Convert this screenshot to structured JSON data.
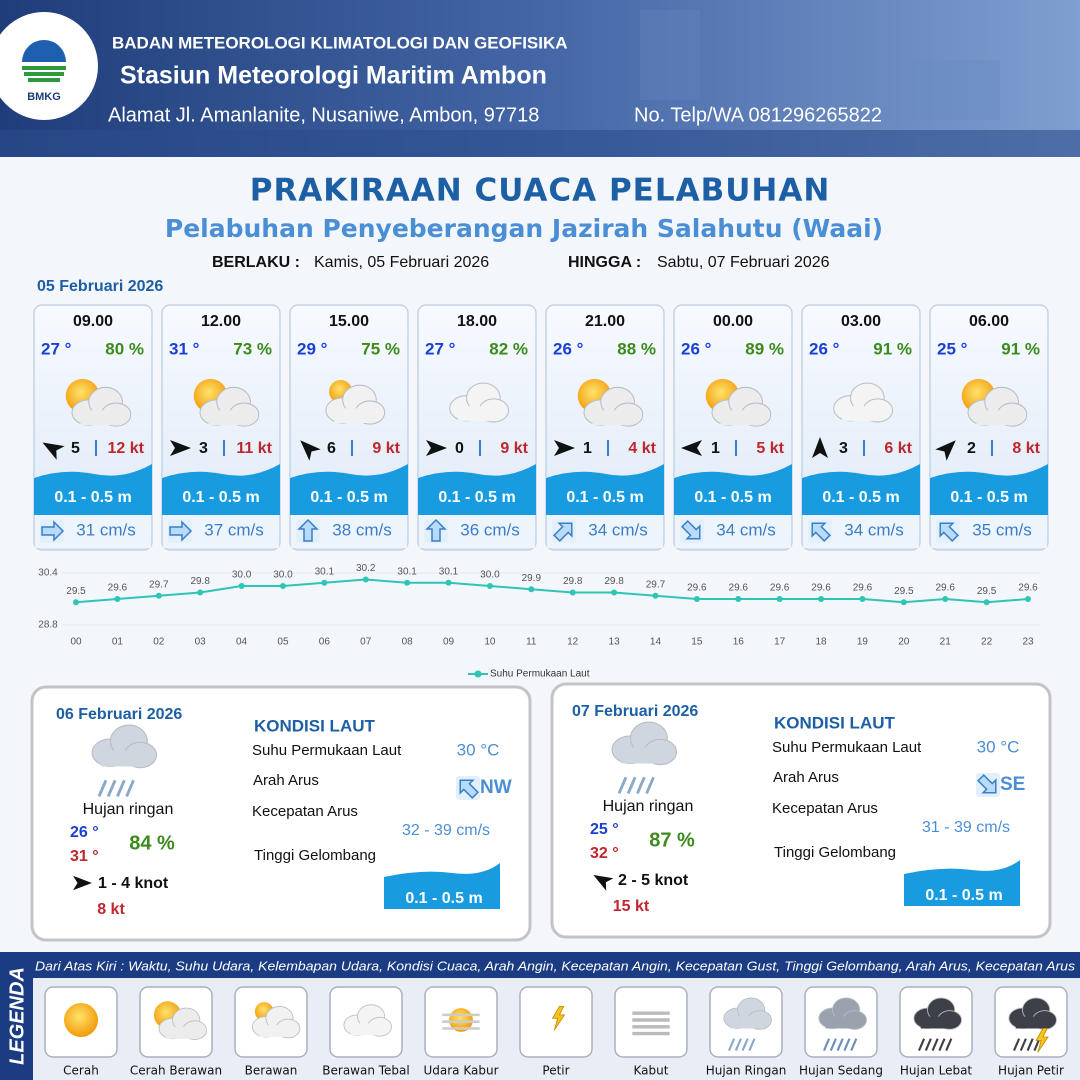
{
  "header": {
    "logo": "BMKG",
    "agency": "BADAN METEOROLOGI KLIMATOLOGI DAN GEOFISIKA",
    "station": "Stasiun Meteorologi Maritim Ambon",
    "address": "Alamat Jl. Amanlanite, Nusaniwe, Ambon, 97718",
    "phone": "No. Telp/WA  081296265822"
  },
  "title": "PRAKIRAAN CUACA PELABUHAN",
  "subtitle": "Pelabuhan Penyeberangan Jazirah Salahutu (Waai)",
  "validity": {
    "from_label": "BERLAKU :",
    "from": "Kamis, 05 Februari 2026",
    "to_label": "HINGGA :",
    "to": "Sabtu, 07 Februari 2026"
  },
  "today": {
    "date": "05 Februari 2026",
    "forecasts": [
      {
        "time": "09.00",
        "temperature": "27 °",
        "humidity": "80 %",
        "wind_speed": "5",
        "gust": "12 kt",
        "wave": "0.1 - 0.5 m",
        "current": "31 cm/s"
      },
      {
        "time": "12.00",
        "temperature": "31 °",
        "humidity": "73 %",
        "wind_speed": "3",
        "gust": "11 kt",
        "wave": "0.1 - 0.5 m",
        "current": "37 cm/s"
      },
      {
        "time": "15.00",
        "temperature": "29 °",
        "humidity": "75 %",
        "wind_speed": "6",
        "gust": "9 kt",
        "wave": "0.1 - 0.5 m",
        "current": "38 cm/s"
      },
      {
        "time": "18.00",
        "temperature": "27 °",
        "humidity": "82 %",
        "wind_speed": "0",
        "gust": "9 kt",
        "wave": "0.1 - 0.5 m",
        "current": "36 cm/s"
      },
      {
        "time": "21.00",
        "temperature": "26 °",
        "humidity": "88 %",
        "wind_speed": "1",
        "gust": "4 kt",
        "wave": "0.1 - 0.5 m",
        "current": "34 cm/s"
      },
      {
        "time": "00.00",
        "temperature": "26 °",
        "humidity": "89 %",
        "wind_speed": "1",
        "gust": "5 kt",
        "wave": "0.1 - 0.5 m",
        "current": "34 cm/s"
      },
      {
        "time": "03.00",
        "temperature": "26 °",
        "humidity": "91 %",
        "wind_speed": "3",
        "gust": "6 kt",
        "wave": "0.1 - 0.5 m",
        "current": "34 cm/s"
      },
      {
        "time": "06.00",
        "temperature": "25 °",
        "humidity": "91 %",
        "wind_speed": "2",
        "gust": "8 kt",
        "wave": "0.1 - 0.5 m",
        "current": "35 cm/s"
      }
    ]
  },
  "chart_data": {
    "type": "line",
    "categories": [
      "00",
      "01",
      "02",
      "03",
      "04",
      "05",
      "06",
      "07",
      "08",
      "09",
      "10",
      "11",
      "12",
      "13",
      "14",
      "15",
      "16",
      "17",
      "18",
      "19",
      "20",
      "21",
      "22",
      "23"
    ],
    "series": [
      {
        "name": "Suhu Permukaan Laut",
        "color": "#2ec4b6",
        "values": [
          29.5,
          29.6,
          29.7,
          29.8,
          30.0,
          30.0,
          30.1,
          30.2,
          30.1,
          30.1,
          30.0,
          29.9,
          29.8,
          29.8,
          29.7,
          29.6,
          29.6,
          29.6,
          29.6,
          29.6,
          29.5,
          29.6,
          29.5,
          29.6
        ],
        "value_labels": [
          "29.5",
          "29.6",
          "29.7",
          "29.8",
          "30.0",
          "30.0",
          "30.1",
          "30.2",
          "30.1",
          "30.1",
          "30.0",
          "29.9",
          "29.8",
          "29.8",
          "29.7",
          "29.6",
          "29.6",
          "29.6",
          "29.6",
          "29.6",
          "29.5",
          "29.6",
          "29.5",
          "29.6"
        ]
      }
    ],
    "ylim": [
      28.8,
      30.4
    ],
    "yticks": [
      28.8,
      30.4
    ]
  },
  "outlook": [
    {
      "date": "06 Februari 2026",
      "condition": "Hujan ringan",
      "temp_min": "26 °",
      "temp_max": "31 °",
      "humidity": "84 %",
      "wind": "1  - 4 knot",
      "gust": "8 kt",
      "sea_title": "KONDISI LAUT",
      "sst_label": "Suhu Permukaan Laut",
      "sst": "30 °C",
      "current_dir_label": "Arah Arus",
      "current_dir": "NW",
      "current_speed_label": "Kecepatan Arus",
      "current_speed": "32 - 39 cm/s",
      "wave_label": "Tinggi Gelombang",
      "wave": "0.1 - 0.5 m"
    },
    {
      "date": "07 Februari 2026",
      "condition": "Hujan ringan",
      "temp_min": "25 °",
      "temp_max": "32 °",
      "humidity": "87 %",
      "wind": "2  - 5 knot",
      "gust": "15 kt",
      "sea_title": "KONDISI LAUT",
      "sst_label": "Suhu Permukaan Laut",
      "sst": "30 °C",
      "current_dir_label": "Arah Arus",
      "current_dir": "SE",
      "current_speed_label": "Kecepatan Arus",
      "current_speed": "31 - 39 cm/s",
      "wave_label": "Tinggi Gelombang",
      "wave": "0.1 - 0.5 m"
    }
  ],
  "legend": {
    "title": "LEGENDA",
    "description": "Dari Atas Kiri : Waktu, Suhu Udara, Kelembapan Udara, Kondisi Cuaca, Arah Angin, Kecepatan Angin, Kecepatan Gust, Tinggi Gelombang, Arah Arus, Kecepatan Arus",
    "items": [
      "Cerah",
      "Cerah Berawan",
      "Berawan",
      "Berawan Tebal",
      "Udara Kabur",
      "Petir",
      "Kabut",
      "Hujan Ringan",
      "Hujan Sedang",
      "Hujan Lebat",
      "Hujan Petir"
    ]
  }
}
